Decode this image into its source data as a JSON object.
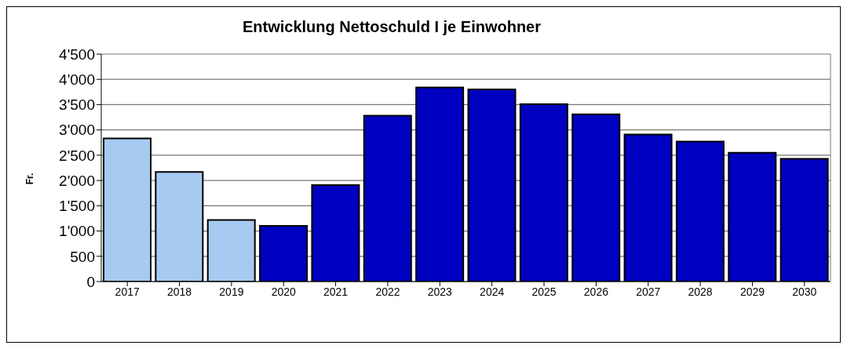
{
  "chart_data": {
    "type": "bar",
    "title": "Entwicklung Nettoschuld I je Einwohner",
    "ylabel": "Fr.",
    "categories": [
      "2017",
      "2018",
      "2019",
      "2020",
      "2021",
      "2022",
      "2023",
      "2024",
      "2025",
      "2026",
      "2027",
      "2028",
      "2029",
      "2030"
    ],
    "values": [
      2830,
      2170,
      1220,
      1100,
      1910,
      3280,
      3840,
      3800,
      3510,
      3310,
      2910,
      2770,
      2550,
      2430
    ],
    "colors": [
      "#a6caf0",
      "#a6caf0",
      "#a6caf0",
      "#0000c0",
      "#0000c0",
      "#0000c0",
      "#0000c0",
      "#0000c0",
      "#0000c0",
      "#0000c0",
      "#0000c0",
      "#0000c0",
      "#0000c0",
      "#0000c0"
    ],
    "ylim": [
      0,
      4500
    ],
    "yticks": [
      0,
      500,
      {
        "value": 1000,
        "label": "1'000"
      },
      {
        "value": 1500,
        "label": "1'500"
      },
      {
        "value": 2000,
        "label": "2'000"
      },
      {
        "value": 2500,
        "label": "2'500"
      },
      {
        "value": 3000,
        "label": "3'000"
      },
      {
        "value": 3500,
        "label": "3'500"
      },
      {
        "value": 4000,
        "label": "4'000"
      },
      {
        "value": 4500,
        "label": "4'500"
      }
    ],
    "grid": "y"
  }
}
